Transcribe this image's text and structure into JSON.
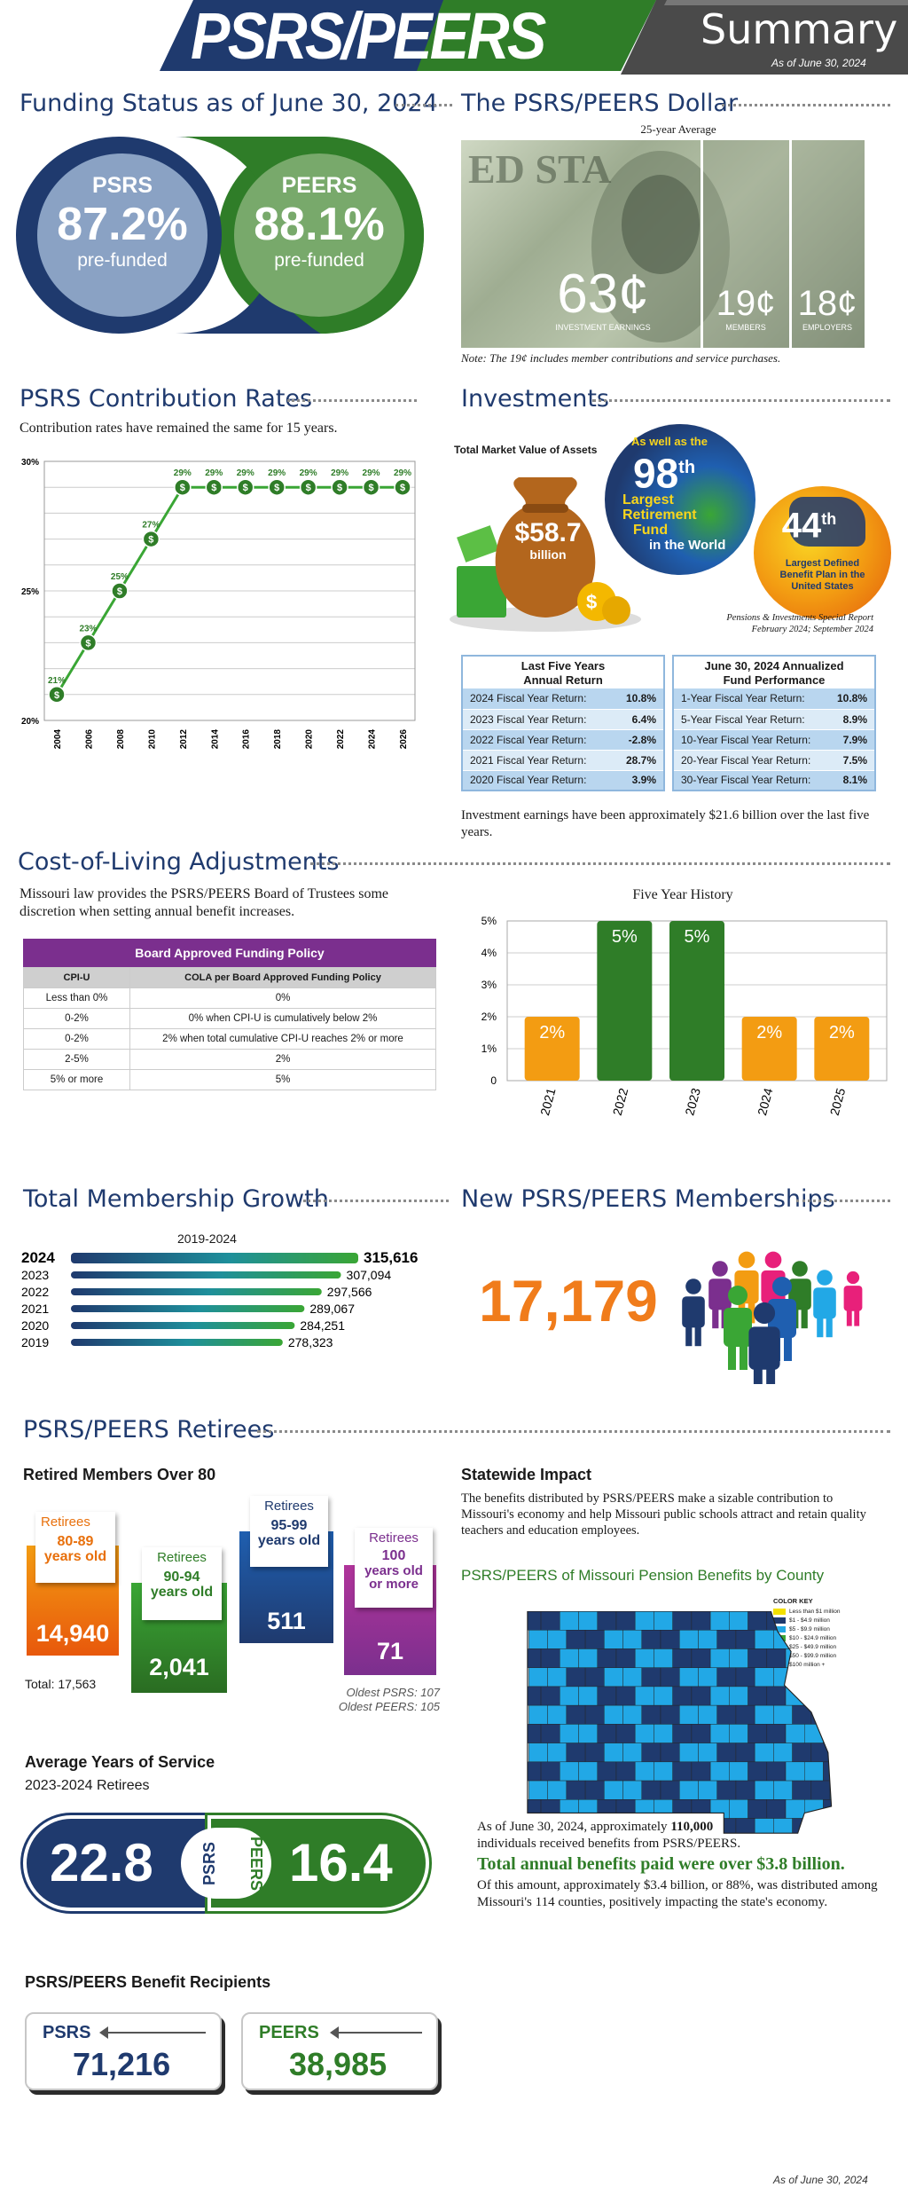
{
  "header": {
    "logo": "PSRS/PEERS",
    "title": "Summary",
    "as_of": "As of June 30, 2024"
  },
  "funding": {
    "title": "Funding Status as of June 30, 2024",
    "psrs": {
      "name": "PSRS",
      "pct": "87.2%",
      "label": "pre-funded"
    },
    "peers": {
      "name": "PEERS",
      "pct": "88.1%",
      "label": "pre-funded"
    }
  },
  "dollar": {
    "title": "The PSRS/PEERS Dollar",
    "subtitle": "25-year Average",
    "parts": [
      {
        "value": "63¢",
        "label": "INVESTMENT EARNINGS"
      },
      {
        "value": "19¢",
        "label": "MEMBERS"
      },
      {
        "value": "18¢",
        "label": "EMPLOYERS"
      }
    ],
    "note": "Note: The 19¢ includes member contributions and service purchases."
  },
  "contrib": {
    "title": "PSRS Contribution Rates",
    "subtitle": "Contribution rates have remained the same for 15 years."
  },
  "chart_data": [
    {
      "type": "line",
      "title": "",
      "x": [
        "2004",
        "2005",
        "2006",
        "2007",
        "2008",
        "2009",
        "2010",
        "2011",
        "2012",
        "2013",
        "2014",
        "2015",
        "2016",
        "2017",
        "2018",
        "2019",
        "2020",
        "2021",
        "2022",
        "2023",
        "2024",
        "2025",
        "2026"
      ],
      "values": [
        21,
        22,
        23,
        24,
        25,
        26,
        27,
        28,
        29,
        29,
        29,
        29,
        29,
        29,
        29,
        29,
        29,
        29,
        29,
        29,
        29,
        29,
        29
      ],
      "point_labels": [
        {
          "x": "2004",
          "label": "21%"
        },
        {
          "x": "2006",
          "label": "23%"
        },
        {
          "x": "2008",
          "label": "25%"
        },
        {
          "x": "2010",
          "label": "27%"
        },
        {
          "x": "2012",
          "label": "29%"
        },
        {
          "x": "2014",
          "label": "29%"
        },
        {
          "x": "2016",
          "label": "29%"
        },
        {
          "x": "2018",
          "label": "29%"
        },
        {
          "x": "2020",
          "label": "29%"
        },
        {
          "x": "2022",
          "label": "29%"
        },
        {
          "x": "2024",
          "label": "29%"
        },
        {
          "x": "2026",
          "label": "29%"
        }
      ],
      "tick_labels_x": [
        "2004",
        "2006",
        "2008",
        "2010",
        "2012",
        "2014",
        "2016",
        "2018",
        "2020",
        "2022",
        "2024",
        "2026"
      ],
      "tick_labels_y": [
        "30%",
        "25%",
        "20%"
      ],
      "ylim": [
        20,
        30
      ]
    },
    {
      "type": "bar",
      "title": "Five Year History",
      "categories": [
        "2021",
        "2022",
        "2023",
        "2024",
        "2025"
      ],
      "values": [
        2,
        5,
        5,
        2,
        2
      ],
      "labels": [
        "2%",
        "5%",
        "5%",
        "2%",
        "2%"
      ],
      "tick_labels_y": [
        "5%",
        "4%",
        "3%",
        "2%",
        "1%",
        "0"
      ],
      "ylim": [
        0,
        5
      ],
      "colors": [
        "#f39c12",
        "#2f7d28",
        "#2f7d28",
        "#f39c12",
        "#f39c12"
      ]
    },
    {
      "type": "bar",
      "orientation": "horizontal",
      "title": "2019-2024",
      "categories": [
        "2024",
        "2023",
        "2022",
        "2021",
        "2020",
        "2019"
      ],
      "values": [
        315616,
        307094,
        297566,
        289067,
        284251,
        278323
      ],
      "labels": [
        "315,616",
        "307,094",
        "297,566",
        "289,067",
        "284,251",
        "278,323"
      ]
    }
  ],
  "investments": {
    "title": "Investments",
    "tmv_label": "Total Market Value of Assets",
    "tmv": "$58.7",
    "tmv_unit": "billion",
    "globe": {
      "top": "As well as the",
      "rank": "98",
      "suffix": "th",
      "l1": "Largest",
      "l2": "Retirement",
      "l3": "Fund",
      "l4": "in the World"
    },
    "us": {
      "rank": "44",
      "suffix": "th",
      "l1": "Largest Defined",
      "l2": "Benefit Plan in the",
      "l3": "United States"
    },
    "source1": "Pensions & Investments Special Report",
    "source2": "February 2024; September 2024",
    "left_table": {
      "h1": "Last Five Years",
      "h2": "Annual Return",
      "rows": [
        {
          "label": "2024 Fiscal Year Return:",
          "value": "10.8%"
        },
        {
          "label": "2023 Fiscal Year Return:",
          "value": "6.4%"
        },
        {
          "label": "2022 Fiscal Year Return:",
          "value": "-2.8%"
        },
        {
          "label": "2021 Fiscal Year Return:",
          "value": "28.7%"
        },
        {
          "label": "2020 Fiscal Year Return:",
          "value": "3.9%"
        }
      ]
    },
    "right_table": {
      "h1": "June 30, 2024 Annualized",
      "h2": "Fund Performance",
      "rows": [
        {
          "label": "1-Year Fiscal Year Return:",
          "value": "10.8%"
        },
        {
          "label": "5-Year Fiscal Year Return:",
          "value": "8.9%"
        },
        {
          "label": "10-Year Fiscal Year Return:",
          "value": "7.9%"
        },
        {
          "label": "20-Year Fiscal Year Return:",
          "value": "7.5%"
        },
        {
          "label": "30-Year Fiscal Year Return:",
          "value": "8.1%"
        }
      ]
    },
    "footer_note": "Investment earnings have been approximately $21.6 billion over the last five years."
  },
  "cola": {
    "title": "Cost-of-Living Adjustments",
    "text": "Missouri law provides the PSRS/PEERS Board of Trustees some discretion when setting annual benefit increases.",
    "policy_title": "Board Approved Funding Policy",
    "col1": "CPI-U",
    "col2": "COLA per Board Approved Funding Policy",
    "rows": [
      [
        "Less than 0%",
        "0%"
      ],
      [
        "0-2%",
        "0% when CPI-U is cumulatively below 2%"
      ],
      [
        "0-2%",
        "2% when total cumulative CPI-U reaches 2% or more"
      ],
      [
        "2-5%",
        "2%"
      ],
      [
        "5% or more",
        "5%"
      ]
    ]
  },
  "membership": {
    "title": "Total Membership Growth",
    "new_title": "New PSRS/PEERS Memberships",
    "new_count": "17,179"
  },
  "retirees": {
    "title": "PSRS/PEERS Retirees",
    "over80_title": "Retired Members Over 80",
    "groups": [
      {
        "label": "Retirees",
        "range": "80-89",
        "sub": "years old",
        "count": "14,940"
      },
      {
        "label": "Retirees",
        "range": "90-94",
        "sub": "years old",
        "count": "2,041"
      },
      {
        "label": "Retirees",
        "range": "95-99",
        "sub": "years old",
        "count": "511"
      },
      {
        "label": "Retirees",
        "range": "100",
        "sub": "years old or more",
        "count": "71"
      }
    ],
    "total": "Total: 17,563",
    "oldest1": "Oldest PSRS: 107",
    "oldest2": "Oldest PEERS: 105",
    "service_title": "Average Years of Service",
    "service_sub": "2023-2024 Retirees",
    "psrs_years": "22.8",
    "peers_years": "16.4",
    "psrs": "PSRS",
    "peers": "PEERS",
    "recip_title": "PSRS/PEERS Benefit Recipients",
    "psrs_recip": "71,216",
    "peers_recip": "38,985"
  },
  "impact": {
    "title": "Statewide Impact",
    "text": "The benefits distributed by PSRS/PEERS make a sizable contribution to Missouri's economy and help Missouri public schools attract and retain quality teachers and education employees.",
    "map_title": "PSRS/PEERS of Missouri Pension Benefits by County",
    "key_title": "COLOR KEY",
    "key": [
      {
        "label": "Less than $1 million",
        "color": "#f3e000"
      },
      {
        "label": "$1 - $4.9 million",
        "color": "#1f3a6e"
      },
      {
        "label": "$5 - $9.9 million",
        "color": "#22a8e6"
      },
      {
        "label": "$10 - $24.9 million",
        "color": "#3aa635"
      },
      {
        "label": "$25 - $49.9 million",
        "color": "#7a2a8c"
      },
      {
        "label": "$50 - $99.9 million",
        "color": "#e8207a"
      },
      {
        "label": "$100 million +",
        "color": "#f07c1b"
      }
    ],
    "p1a": "As of June 30, 2024, approximately ",
    "p1b": "110,000",
    "p1c": "individuals received benefits from PSRS/PEERS.",
    "big": "Total annual benefits paid were over $3.8 billion.",
    "p2": "Of this amount, approximately $3.4 billion, or 88%, was distributed among Missouri's 114 counties, positively impacting the state's economy."
  },
  "footer": "As of June 30, 2024"
}
